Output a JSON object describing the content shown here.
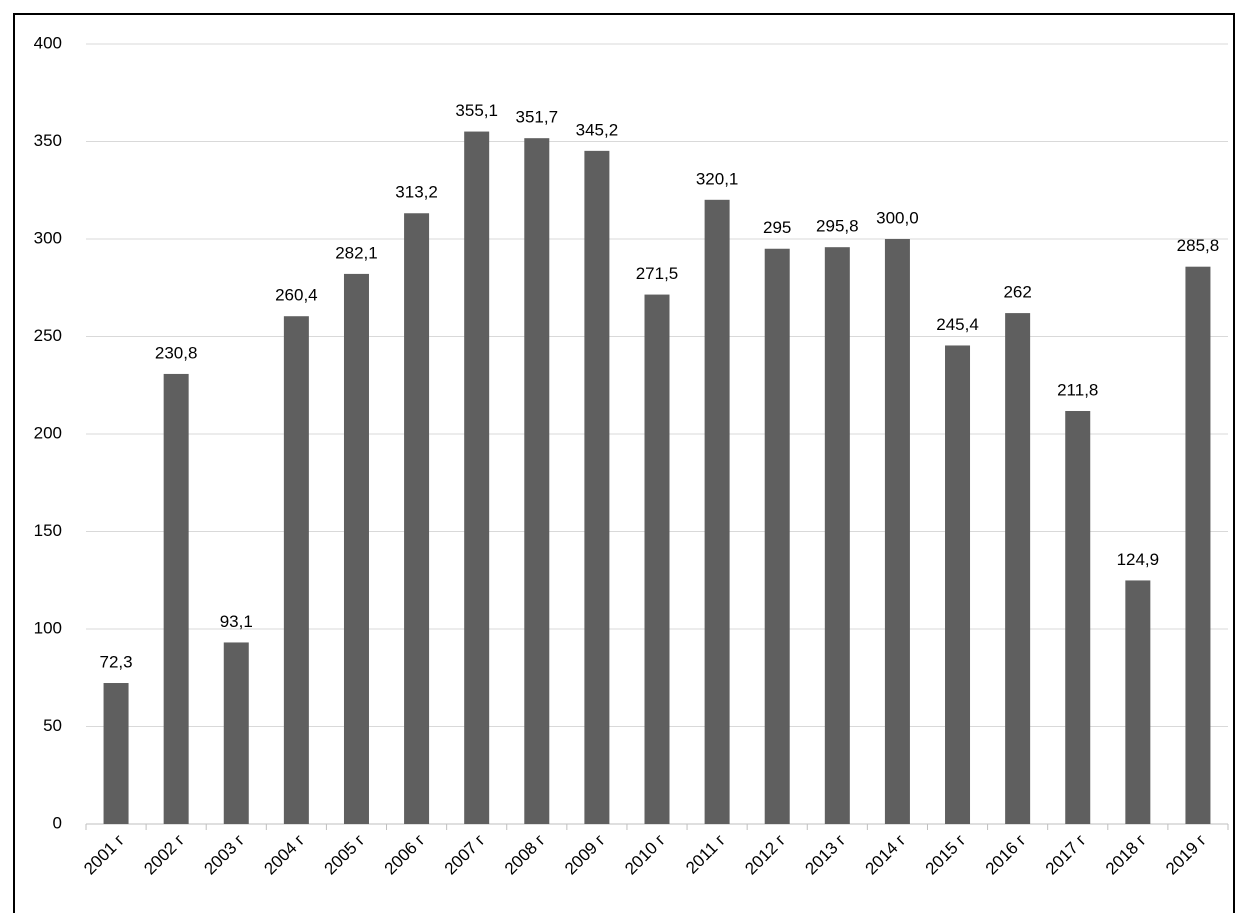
{
  "chart_data": {
    "type": "bar",
    "categories": [
      "2001 г",
      "2002 г",
      "2003 г",
      "2004 г",
      "2005 г",
      "2006 г",
      "2007 г",
      "2008 г",
      "2009 г",
      "2010 г",
      "2011 г",
      "2012 г",
      "2013 г",
      "2014 г",
      "2015 г",
      "2016 г",
      "2017 г",
      "2018 г",
      "2019 г"
    ],
    "values": [
      72.3,
      230.8,
      93.1,
      260.4,
      282.1,
      313.2,
      355.1,
      351.7,
      345.2,
      271.5,
      320.1,
      295,
      295.8,
      300.0,
      245.4,
      262,
      211.8,
      124.9,
      285.8
    ],
    "value_labels": [
      "72,3",
      "230,8",
      "93,1",
      "260,4",
      "282,1",
      "313,2",
      "355,1",
      "351,7",
      "345,2",
      "271,5",
      "320,1",
      "295",
      "295,8",
      "300,0",
      "245,4",
      "262",
      "211,8",
      "124,9",
      "285,8"
    ],
    "color": "#5f5f5f",
    "ylim": [
      0,
      400
    ],
    "yticks": [
      0,
      50,
      100,
      150,
      200,
      250,
      300,
      350,
      400
    ],
    "grid": true
  }
}
